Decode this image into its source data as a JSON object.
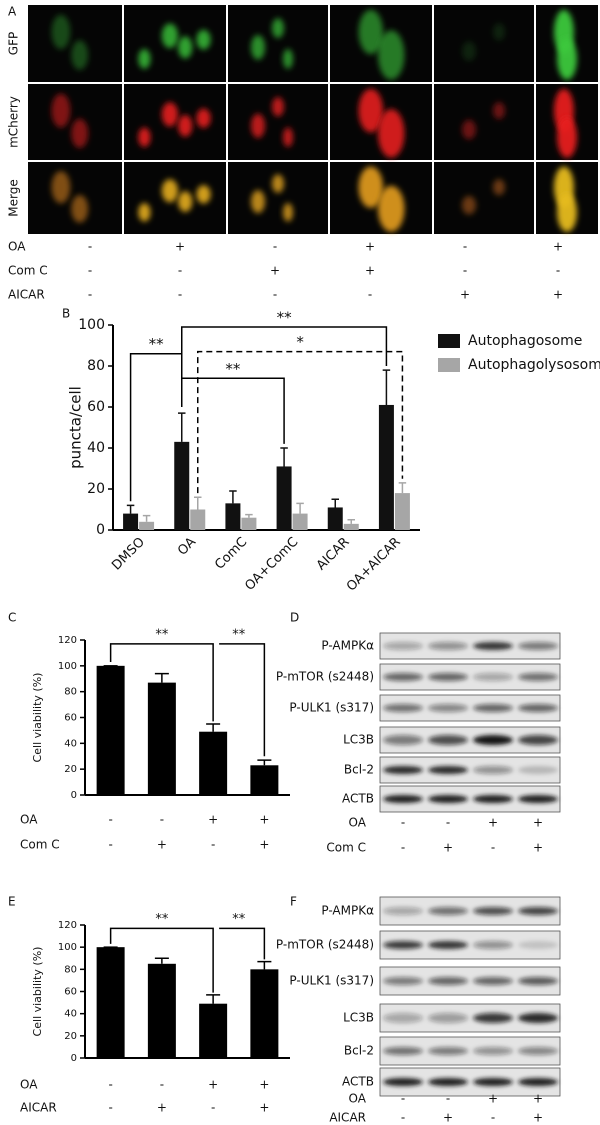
{
  "panel_a": {
    "label": "A",
    "rows": [
      "GFP",
      "mCherry",
      "Merge"
    ],
    "treatments": [
      {
        "name": "OA",
        "signs": [
          "-",
          "+",
          "-",
          "+",
          "-",
          "+"
        ]
      },
      {
        "name": "Com C",
        "signs": [
          "-",
          "-",
          "+",
          "+",
          "-",
          "-"
        ]
      },
      {
        "name": "AICAR",
        "signs": [
          "-",
          "-",
          "-",
          "-",
          "+",
          "+"
        ]
      }
    ]
  },
  "chart_data": [
    {
      "type": "bar",
      "label": "B",
      "ylabel": "puncta/cell",
      "categories": [
        "DMSO",
        "OA",
        "ComC",
        "OA+ComC",
        "AICAR",
        "OA+AICAR"
      ],
      "series": [
        {
          "name": "Autophagosome",
          "color": "#111111",
          "values": [
            8,
            43,
            13,
            31,
            11,
            61
          ],
          "errors": [
            4,
            14,
            6,
            9,
            4,
            17
          ]
        },
        {
          "name": "Autophagolysosome",
          "color": "#a6a6a6",
          "values": [
            4,
            10,
            6,
            8,
            3,
            18
          ],
          "errors": [
            3,
            6,
            1.5,
            5,
            2,
            5
          ]
        }
      ],
      "ylim": [
        0,
        100
      ],
      "yticks": [
        0,
        20,
        40,
        60,
        80,
        100
      ],
      "legend": "right",
      "annotations": [
        "**",
        "**",
        "**",
        "*"
      ]
    },
    {
      "type": "bar",
      "label": "C",
      "ylabel": "Cell viability (%)",
      "color": "#000000",
      "values": [
        100,
        87,
        49,
        23
      ],
      "errors": [
        0,
        7,
        6,
        4
      ],
      "ylim": [
        0,
        120
      ],
      "yticks": [
        0,
        20,
        40,
        60,
        80,
        100,
        120
      ],
      "annotations": [
        "**",
        "**"
      ],
      "treatments": [
        {
          "name": "OA",
          "signs": [
            "-",
            "-",
            "+",
            "+"
          ]
        },
        {
          "name": "Com C",
          "signs": [
            "-",
            "+",
            "-",
            "+"
          ]
        }
      ]
    },
    {
      "type": "bar",
      "label": "E",
      "ylabel": "Cell viability (%)",
      "color": "#000000",
      "values": [
        100,
        85,
        49,
        80
      ],
      "errors": [
        0,
        5,
        8,
        7
      ],
      "ylim": [
        0,
        120
      ],
      "yticks": [
        0,
        20,
        40,
        60,
        80,
        100,
        120
      ],
      "annotations": [
        "**",
        "**"
      ],
      "treatments": [
        {
          "name": "OA",
          "signs": [
            "-",
            "-",
            "+",
            "+"
          ]
        },
        {
          "name": "AICAR",
          "signs": [
            "-",
            "+",
            "-",
            "+"
          ]
        }
      ]
    }
  ],
  "panel_d": {
    "label": "D",
    "bands": [
      "P-AMPKα",
      "P-mTOR (s2448)",
      "P-ULK1 (s317)",
      "LC3B",
      "Bcl-2",
      "ACTB"
    ],
    "treatments": [
      {
        "name": "OA",
        "signs": [
          "-",
          "-",
          "+",
          "+"
        ]
      },
      {
        "name": "Com C",
        "signs": [
          "-",
          "+",
          "-",
          "+"
        ]
      }
    ]
  },
  "panel_f": {
    "label": "F",
    "bands": [
      "P-AMPKα",
      "P-mTOR (s2448)",
      "P-ULK1 (s317)",
      "LC3B",
      "Bcl-2",
      "ACTB"
    ],
    "treatments": [
      {
        "name": "OA",
        "signs": [
          "-",
          "-",
          "+",
          "+"
        ]
      },
      {
        "name": "AICAR",
        "signs": [
          "-",
          "+",
          "-",
          "+"
        ]
      }
    ]
  }
}
